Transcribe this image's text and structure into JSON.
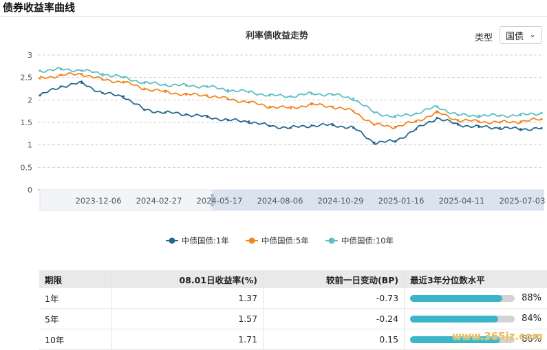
{
  "header": {
    "title": "债券收益率曲线"
  },
  "filter": {
    "label": "类型",
    "selected": "国债"
  },
  "chart_data": {
    "type": "line",
    "title": "利率债收益走势",
    "ylim": [
      0,
      3
    ],
    "yticks": [
      0,
      0.5,
      1,
      1.5,
      2,
      2.5,
      3
    ],
    "xticks": [
      "2023-12-06",
      "2024-02-27",
      "2024-05-17",
      "2024-08-06",
      "2024-10-29",
      "2025-01-16",
      "2025-04-11",
      "2025-07-03"
    ],
    "x": [
      "2023-10-02",
      "2023-11-06",
      "2023-12-06",
      "2024-01-08",
      "2024-02-01",
      "2024-02-27",
      "2024-03-25",
      "2024-04-22",
      "2024-05-17",
      "2024-06-12",
      "2024-07-08",
      "2024-08-06",
      "2024-09-02",
      "2024-09-30",
      "2024-10-29",
      "2024-11-25",
      "2024-12-20",
      "2025-01-16",
      "2025-02-13",
      "2025-03-12",
      "2025-04-11",
      "2025-05-08",
      "2025-06-05",
      "2025-07-03",
      "2025-08-01"
    ],
    "series": [
      {
        "name": "中债国债:1年",
        "color": "#24688f",
        "values": [
          2.1,
          2.3,
          2.38,
          2.15,
          2.08,
          1.78,
          1.72,
          1.68,
          1.62,
          1.55,
          1.52,
          1.42,
          1.38,
          1.43,
          1.44,
          1.38,
          1.05,
          1.08,
          1.35,
          1.6,
          1.45,
          1.4,
          1.38,
          1.35,
          1.37
        ]
      },
      {
        "name": "中债国债:5年",
        "color": "#f5841f",
        "values": [
          2.48,
          2.55,
          2.58,
          2.45,
          2.4,
          2.25,
          2.18,
          2.12,
          2.1,
          2.02,
          1.95,
          1.85,
          1.82,
          1.9,
          1.85,
          1.75,
          1.45,
          1.4,
          1.52,
          1.72,
          1.55,
          1.52,
          1.5,
          1.52,
          1.57
        ]
      },
      {
        "name": "中债国债:10年",
        "color": "#5bbfc6",
        "values": [
          2.65,
          2.68,
          2.66,
          2.58,
          2.5,
          2.38,
          2.34,
          2.32,
          2.3,
          2.22,
          2.18,
          2.1,
          2.08,
          2.14,
          2.12,
          2.03,
          1.72,
          1.62,
          1.7,
          1.85,
          1.66,
          1.65,
          1.65,
          1.66,
          1.71
        ]
      }
    ]
  },
  "table": {
    "headers": [
      "期限",
      "08.01日收益率(%)",
      "较前一日变动(BP)",
      "最近3年分位数水平"
    ],
    "rows": [
      {
        "term": "1年",
        "yield": "1.37",
        "change": "-0.73",
        "pct_label": "88%",
        "pct": 88
      },
      {
        "term": "5年",
        "yield": "1.57",
        "change": "-0.24",
        "pct_label": "84%",
        "pct": 84
      },
      {
        "term": "10年",
        "yield": "1.71",
        "change": "0.15",
        "pct_label": "86%",
        "pct": 86
      }
    ]
  },
  "watermark": "www.365jz.com",
  "icons": {
    "dropdown": "chevron-down-icon"
  }
}
